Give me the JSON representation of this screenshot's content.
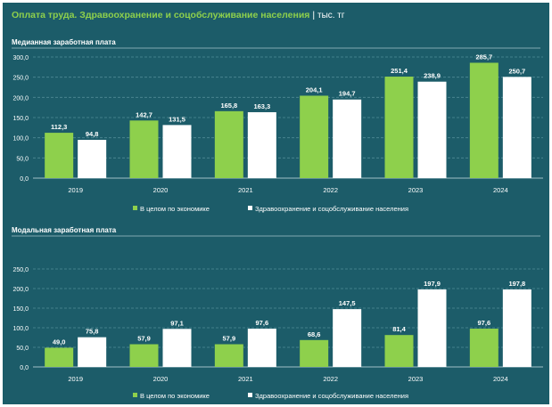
{
  "header": {
    "title": "Оплата труда. Здравоохранение и соцобслуживание населения",
    "separator": "|",
    "unit": "тыс. тг"
  },
  "colors": {
    "background": "#1c5c69",
    "economy": "#8ed04c",
    "health": "#ffffff",
    "grid": "#4f8a95"
  },
  "chart_data": [
    {
      "type": "bar",
      "title": "Медианная заработная плата",
      "categories": [
        "2019",
        "2020",
        "2021",
        "2022",
        "2023",
        "2024"
      ],
      "series": [
        {
          "name": "В целом по экономике",
          "values": [
            112.3,
            142.7,
            165.8,
            204.1,
            251.4,
            285.7
          ],
          "labels": [
            "112,3",
            "142,7",
            "165,8",
            "204,1",
            "251,4",
            "285,7"
          ]
        },
        {
          "name": "Здравоохранение и соцобслуживание населения",
          "values": [
            94.8,
            131.5,
            163.3,
            194.7,
            238.9,
            250.7
          ],
          "labels": [
            "94,8",
            "131,5",
            "163,3",
            "194,7",
            "238,9",
            "250,7"
          ]
        }
      ],
      "ylim": [
        0,
        300
      ],
      "yticks": [
        "0,0",
        "50,0",
        "100,0",
        "150,0",
        "200,0",
        "250,0",
        "300,0"
      ],
      "grid": true,
      "legend": "bottom-center"
    },
    {
      "type": "bar",
      "title": "Модальная заработная плата",
      "categories": [
        "2019",
        "2020",
        "2021",
        "2022",
        "2023",
        "2024"
      ],
      "series": [
        {
          "name": "В целом по экономике",
          "values": [
            49.0,
            57.9,
            57.9,
            68.6,
            81.4,
            97.6
          ],
          "labels": [
            "49,0",
            "57,9",
            "57,9",
            "68,6",
            "81,4",
            "97,6"
          ]
        },
        {
          "name": "Здравоохранение и соцобслуживание населения",
          "values": [
            75.8,
            97.1,
            97.6,
            147.5,
            197.9,
            197.8
          ],
          "labels": [
            "75,8",
            "97,1",
            "97,6",
            "147,5",
            "197,9",
            "197,8"
          ]
        }
      ],
      "ylim": [
        0,
        250
      ],
      "yticks": [
        "0,0",
        "50,0",
        "100,0",
        "150,0",
        "200,0",
        "250,0"
      ],
      "grid": true,
      "legend": "bottom-center"
    }
  ]
}
